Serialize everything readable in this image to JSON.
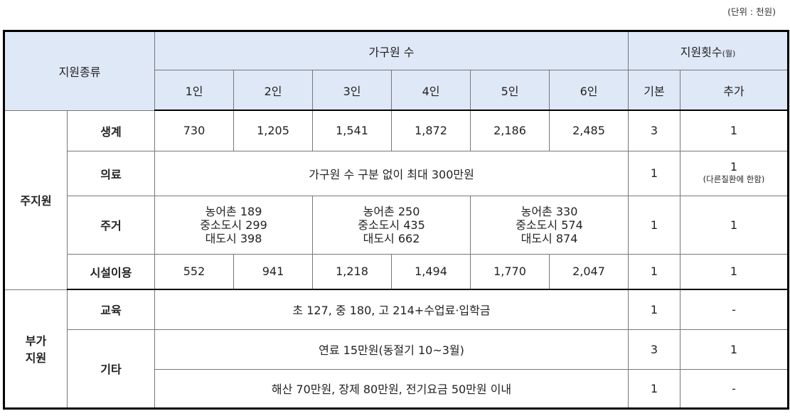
{
  "unit_note": "(단위 : 천원)",
  "header": {
    "type_label": "지원종류",
    "household_label": "가구원 수",
    "count_label": "지원횟수",
    "count_unit": "(월)",
    "household_cols": [
      "1인",
      "2인",
      "3인",
      "4인",
      "5인",
      "6인"
    ],
    "basic_label": "기본",
    "extra_label": "추가"
  },
  "main_support": {
    "label": "주지원",
    "living": {
      "label": "생계",
      "values": [
        "730",
        "1,205",
        "1,541",
        "1,872",
        "2,186",
        "2,485"
      ],
      "basic": "3",
      "extra": "1"
    },
    "medical": {
      "label": "의료",
      "desc": "가구원 수 구분 없이 최대 300만원",
      "basic": "1",
      "extra": "1",
      "extra_note": "(다른질환에 한함)"
    },
    "housing": {
      "label": "주거",
      "groups": [
        [
          "농어촌 189",
          "중소도시 299",
          "대도시 398"
        ],
        [
          "농어촌 250",
          "중소도시 435",
          "대도시 662"
        ],
        [
          "농어촌 330",
          "중소도시 574",
          "대도시 874"
        ]
      ],
      "basic": "1",
      "extra": "1"
    },
    "facility": {
      "label": "시설이용",
      "values": [
        "552",
        "941",
        "1,218",
        "1,494",
        "1,770",
        "2,047"
      ],
      "basic": "1",
      "extra": "1"
    }
  },
  "additional_support": {
    "label_line1": "부가",
    "label_line2": "지원",
    "education": {
      "label": "교육",
      "desc": "초 127, 중 180, 고 214+수업료·입학금",
      "basic": "1",
      "extra": "-"
    },
    "other": {
      "label": "기타",
      "rows": [
        {
          "desc": "연료 15만원(동절기 10~3월)",
          "basic": "3",
          "extra": "1"
        },
        {
          "desc": "해산 70만원, 장제 80만원, 전기요금 50만원 이내",
          "basic": "1",
          "extra": "-"
        }
      ]
    }
  }
}
